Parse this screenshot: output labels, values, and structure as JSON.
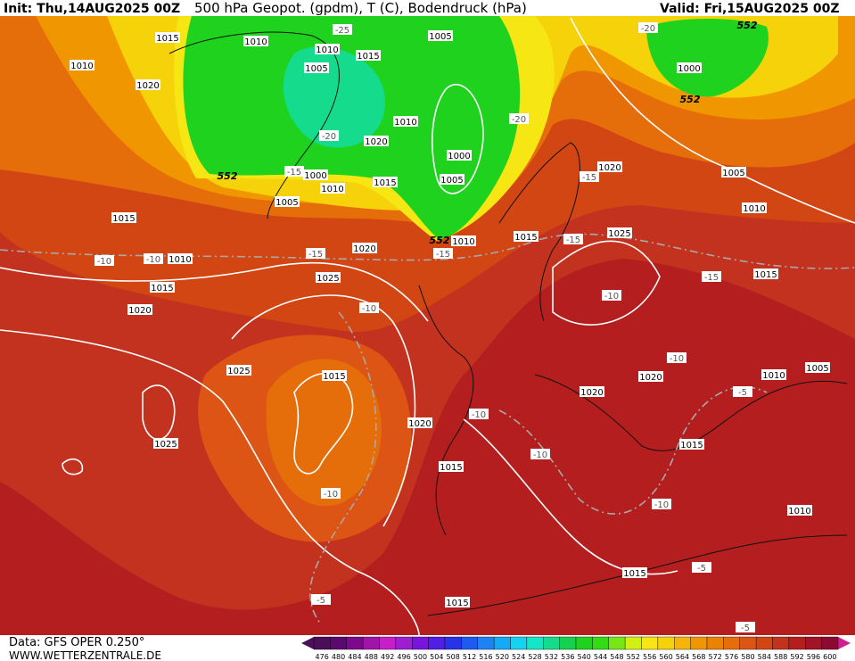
{
  "header": {
    "init": "Init: Thu,14AUG2025 00Z",
    "title": "500 hPa Geopot. (gpdm), T (C), Bodendruck (hPa)",
    "valid": "Valid: Fri,15AUG2025 00Z"
  },
  "footer": {
    "data": "Data: GFS OPER 0.250°",
    "site": "WWW.WETTERZENTRALE.DE"
  },
  "isobar_labels": [
    "1015",
    "1010",
    "1010",
    "1015",
    "1005",
    "1005",
    "1010",
    "1020",
    "1010",
    "1020",
    "1000",
    "1000",
    "1005",
    "1010",
    "1015",
    "1005",
    "1015",
    "1010",
    "1015",
    "1020",
    "1020",
    "1010",
    "1015",
    "1025",
    "1025",
    "1020",
    "1005",
    "1010",
    "1015",
    "1000",
    "1025",
    "1015",
    "1025",
    "1020",
    "1015",
    "1020",
    "1020",
    "1010",
    "1005",
    "1015",
    "1010",
    "1015",
    "1015"
  ],
  "temperature_labels": [
    "-25",
    "-20",
    "-20",
    "-20",
    "-15",
    "-15",
    "-15",
    "-15",
    "-15",
    "-15",
    "-10",
    "-10",
    "-10",
    "-10",
    "-10",
    "-10",
    "-10",
    "-10",
    "-10",
    "-5",
    "-5",
    "-5",
    "-5"
  ],
  "contour_552_labels": [
    "552",
    "552",
    "552",
    "552"
  ],
  "legend": {
    "values": [
      476,
      480,
      484,
      488,
      492,
      496,
      500,
      504,
      508,
      512,
      516,
      520,
      524,
      528,
      532,
      536,
      540,
      544,
      548,
      552,
      556,
      560,
      564,
      568,
      572,
      576,
      580,
      584,
      588,
      592,
      596,
      600
    ],
    "colors": [
      "#4b0f5a",
      "#5a0a6e",
      "#7d0a8c",
      "#a014aa",
      "#c81ec8",
      "#a01ed2",
      "#7814dc",
      "#501ee6",
      "#2832e6",
      "#1e5af0",
      "#1e82f5",
      "#14aaf5",
      "#14d2f0",
      "#14e6c8",
      "#14dc8c",
      "#14d250",
      "#1ed21e",
      "#32dc14",
      "#78e614",
      "#d2f014",
      "#f5e614",
      "#f5d20a",
      "#f5b40a",
      "#f09600",
      "#eb8200",
      "#e66e0a",
      "#dc5514",
      "#d24614",
      "#c3321e",
      "#b41e1e",
      "#a01428",
      "#8c0a32"
    ]
  }
}
